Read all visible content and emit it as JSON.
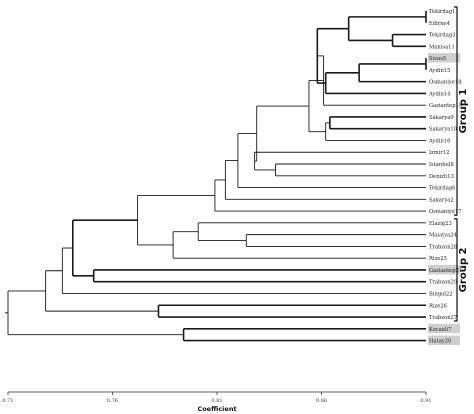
{
  "dendrogram": {
    "leaves": [
      "Tekirdag1",
      "Edirne4",
      "Tekirdag3",
      "Manisa11",
      "Sivas5",
      "Aydin15",
      "Osmaniye18",
      "Aydin14",
      "Gaziantep19",
      "Sakarya9",
      "Sakarya10",
      "Aydin16",
      "Izmir12",
      "Istanbul8",
      "Denizli13",
      "Tekirdag6",
      "Sakarya2",
      "Osmaniye17",
      "Elazig23",
      "Malatya24",
      "Trabzon28",
      "Rize25",
      "Gaziantep21",
      "Trabzon29",
      "Bingol22",
      "Rize26",
      "Trabzon27",
      "Kocaeli7",
      "Hatay20"
    ],
    "highlighted_leaves": [
      "Sivas5",
      "Gaziantep21",
      "Kocaeli7",
      "Hatay20"
    ],
    "highlight_color": "#cfcfcf",
    "axis": {
      "title": "Coefficient",
      "ticks": [
        "0.71",
        "0.76",
        "0.81",
        "0.86",
        "0.91"
      ],
      "range": [
        0.71,
        0.91
      ]
    },
    "groups": [
      {
        "label": "Group 1",
        "from": "Tekirdag1",
        "to": "Osmaniye17"
      },
      {
        "label": "Group 2",
        "from": "Elazig23",
        "to": "Trabzon27"
      }
    ],
    "merges": [
      {
        "a": "Tekirdag1",
        "b": "Edirne4",
        "coef": 0.91,
        "bold": true
      },
      {
        "a": "Tekirdag3",
        "b": "Manisa11",
        "coef": 0.894,
        "bold": true
      },
      {
        "a": 0,
        "b": 1,
        "coef": 0.873,
        "bold": true
      },
      {
        "a": "Sivas5",
        "b": "Aydin15",
        "coef": 0.91,
        "bold": true
      },
      {
        "a": 3,
        "b": "Osmaniye18",
        "coef": 0.878,
        "bold": true
      },
      {
        "a": 4,
        "b": "Aydin14",
        "coef": 0.862,
        "bold": true
      },
      {
        "a": 2,
        "b": 5,
        "coef": 0.858,
        "bold": true
      },
      {
        "a": 6,
        "b": "Gaziantep19",
        "coef": 0.861,
        "bold": false
      },
      {
        "a": "Sakarya9",
        "b": "Sakarya10",
        "coef": 0.864,
        "bold": true
      },
      {
        "a": 8,
        "b": "Aydin16",
        "coef": 0.862,
        "bold": false
      },
      {
        "a": 7,
        "b": 9,
        "coef": 0.854,
        "bold": false
      },
      {
        "a": "Istanbul8",
        "b": "Denizli13",
        "coef": 0.838,
        "bold": false
      },
      {
        "a": "Izmir12",
        "b": 11,
        "coef": 0.828,
        "bold": false
      },
      {
        "a": 10,
        "b": 12,
        "coef": 0.829,
        "bold": false
      },
      {
        "a": 13,
        "b": "Tekirdag6",
        "coef": 0.82,
        "bold": false
      },
      {
        "a": 14,
        "b": "Sakarya2",
        "coef": 0.814,
        "bold": false
      },
      {
        "a": 15,
        "b": "Osmaniye17",
        "coef": 0.809,
        "bold": false
      },
      {
        "a": "Malatya24",
        "b": "Trabzon28",
        "coef": 0.824,
        "bold": false
      },
      {
        "a": "Elazig23",
        "b": 17,
        "coef": 0.801,
        "bold": false
      },
      {
        "a": 18,
        "b": "Rize25",
        "coef": 0.789,
        "bold": false
      },
      {
        "a": 16,
        "b": 19,
        "coef": 0.772,
        "bold": false
      },
      {
        "a": "Gaziantep21",
        "b": "Trabzon29",
        "coef": 0.751,
        "bold": true
      },
      {
        "a": 20,
        "b": 21,
        "coef": 0.741,
        "bold": true
      },
      {
        "a": 22,
        "b": "Bingol22",
        "coef": 0.736,
        "bold": false
      },
      {
        "a": "Rize26",
        "b": "Trabzon27",
        "coef": 0.782,
        "bold": true
      },
      {
        "a": 23,
        "b": 24,
        "coef": 0.728,
        "bold": false
      },
      {
        "a": "Kocaeli7",
        "b": "Hatay20",
        "coef": 0.794,
        "bold": true
      },
      {
        "a": 25,
        "b": 26,
        "coef": 0.71,
        "bold": false
      }
    ]
  }
}
